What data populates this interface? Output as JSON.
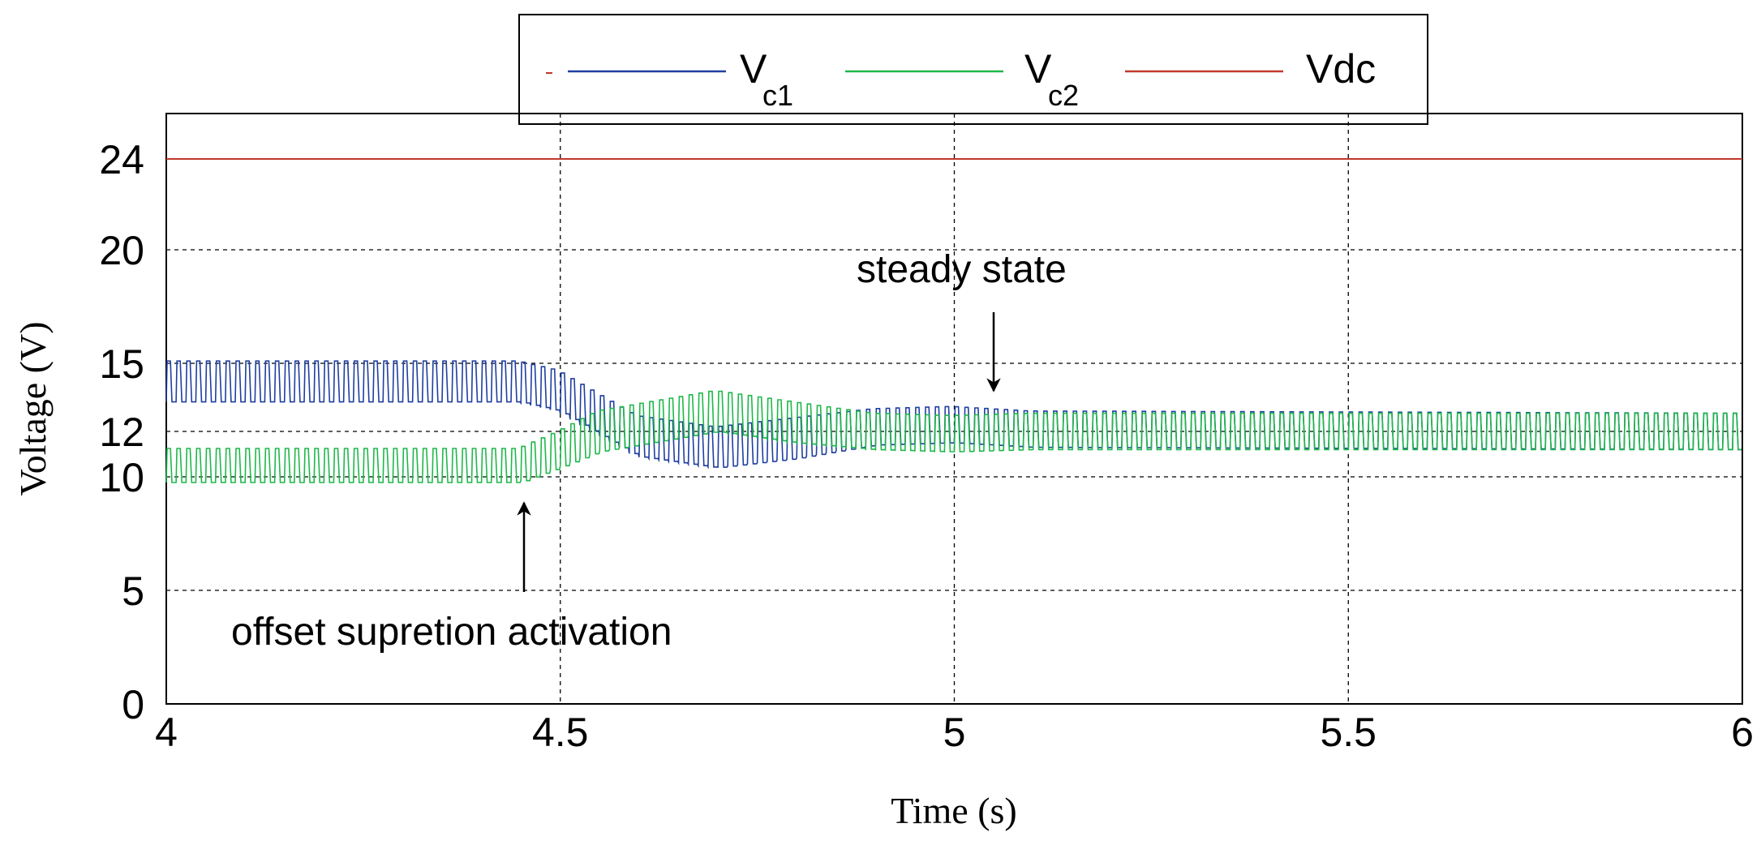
{
  "chart_data": {
    "type": "line",
    "xlabel": "Time (s)",
    "ylabel": "Voltage (V)",
    "xlim": [
      4,
      6
    ],
    "ylim": [
      0,
      26
    ],
    "xticks": [
      4,
      4.5,
      5,
      5.5,
      6
    ],
    "xtick_labels": [
      "4",
      "4.5",
      "5",
      "5.5",
      "6"
    ],
    "yticks": [
      0,
      5,
      10,
      12,
      15,
      20,
      24
    ],
    "ytick_labels": [
      "0",
      "5",
      "10",
      "12",
      "15",
      "20",
      "24"
    ],
    "grid": true,
    "legend": {
      "position": "top-center",
      "entries": [
        {
          "key": "vc1",
          "main": "V",
          "sub": "c1",
          "color": "#1f3fa0"
        },
        {
          "key": "vc2",
          "main": "V",
          "sub": "c2",
          "color": "#1fb84a"
        },
        {
          "key": "vdc",
          "main": "Vdc",
          "sub": "",
          "color": "#c0392b"
        }
      ]
    },
    "series": [
      {
        "name": "Vdc",
        "color": "#c0392b",
        "kind": "constant",
        "value": 24
      },
      {
        "name": "Vc1",
        "color": "#1f3fa0",
        "kind": "ripple",
        "envelope_t": [
          4.0,
          4.45,
          4.5,
          4.55,
          4.6,
          4.7,
          4.8,
          4.9,
          5.0,
          5.1,
          6.0
        ],
        "envelope_mean": [
          14.2,
          14.2,
          13.8,
          12.8,
          11.8,
          11.3,
          11.7,
          12.2,
          12.3,
          12.1,
          12.0
        ],
        "envelope_amp": [
          0.9,
          0.9,
          0.9,
          0.9,
          0.9,
          0.9,
          0.9,
          0.8,
          0.8,
          0.8,
          0.8
        ],
        "ripple_period": 0.0125
      },
      {
        "name": "Vc2",
        "color": "#1fb84a",
        "kind": "ripple",
        "envelope_t": [
          4.0,
          4.45,
          4.5,
          4.55,
          4.6,
          4.7,
          4.8,
          4.9,
          5.0,
          5.1,
          6.0
        ],
        "envelope_mean": [
          10.5,
          10.5,
          11.2,
          12.0,
          12.3,
          12.9,
          12.4,
          12.0,
          11.9,
          12.0,
          12.0
        ],
        "envelope_amp": [
          0.75,
          0.75,
          0.8,
          0.9,
          0.9,
          0.9,
          0.9,
          0.8,
          0.8,
          0.8,
          0.8
        ],
        "ripple_period": 0.0125
      }
    ],
    "annotations": [
      {
        "text": "steady state",
        "x": 5.1,
        "y": 19.1,
        "arrow_from": [
          5.05,
          17.2
        ],
        "arrow_to": [
          5.05,
          14.5
        ]
      },
      {
        "text": "offset supretion activation",
        "x": 4.17,
        "y": 2.8,
        "arrow_from": [
          4.45,
          4.8
        ],
        "arrow_to": [
          4.45,
          9.6
        ]
      }
    ]
  }
}
